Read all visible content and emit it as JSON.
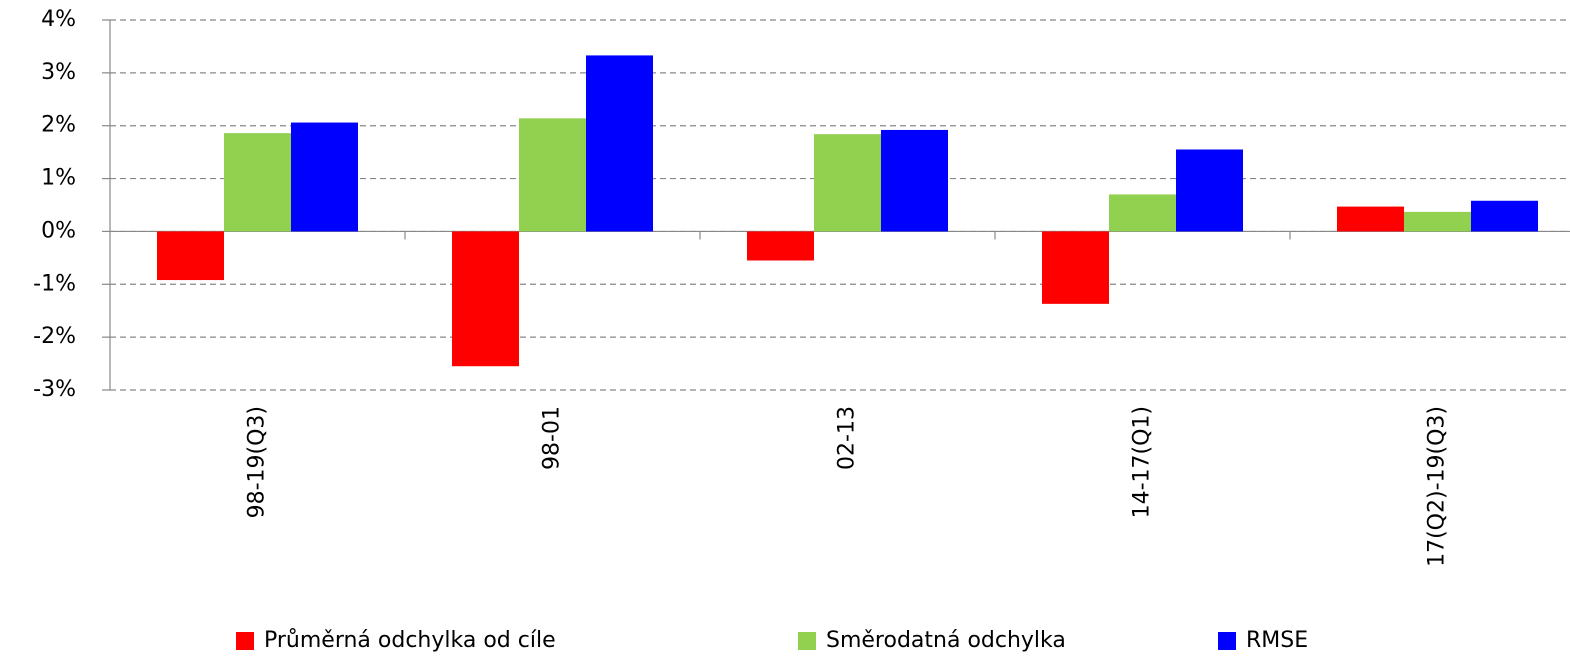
{
  "chart_data": {
    "type": "bar",
    "categories": [
      "98-19(Q3)",
      "98-01",
      "02-13",
      "14-17(Q1)",
      "17(Q2)-19(Q3)"
    ],
    "series": [
      {
        "name": "Průměrná odchylka od cíle",
        "color": "#ff0000",
        "values": [
          -0.92,
          -2.55,
          -0.55,
          -1.37,
          0.47
        ]
      },
      {
        "name": "Směrodatná odchylka",
        "color": "#92d050",
        "values": [
          1.86,
          2.14,
          1.84,
          0.7,
          0.37
        ]
      },
      {
        "name": "RMSE",
        "color": "#0000ff",
        "values": [
          2.06,
          3.33,
          1.92,
          1.55,
          0.58
        ]
      }
    ],
    "ylim": [
      -3,
      4
    ],
    "yticks": [
      {
        "value": -3,
        "label": "-3%"
      },
      {
        "value": -2,
        "label": "-2%"
      },
      {
        "value": -1,
        "label": "-1%"
      },
      {
        "value": 0,
        "label": "0%"
      },
      {
        "value": 1,
        "label": "1%"
      },
      {
        "value": 2,
        "label": "2%"
      },
      {
        "value": 3,
        "label": "3%"
      },
      {
        "value": 4,
        "label": "4%"
      }
    ],
    "grid": true,
    "legend": "bottom"
  }
}
